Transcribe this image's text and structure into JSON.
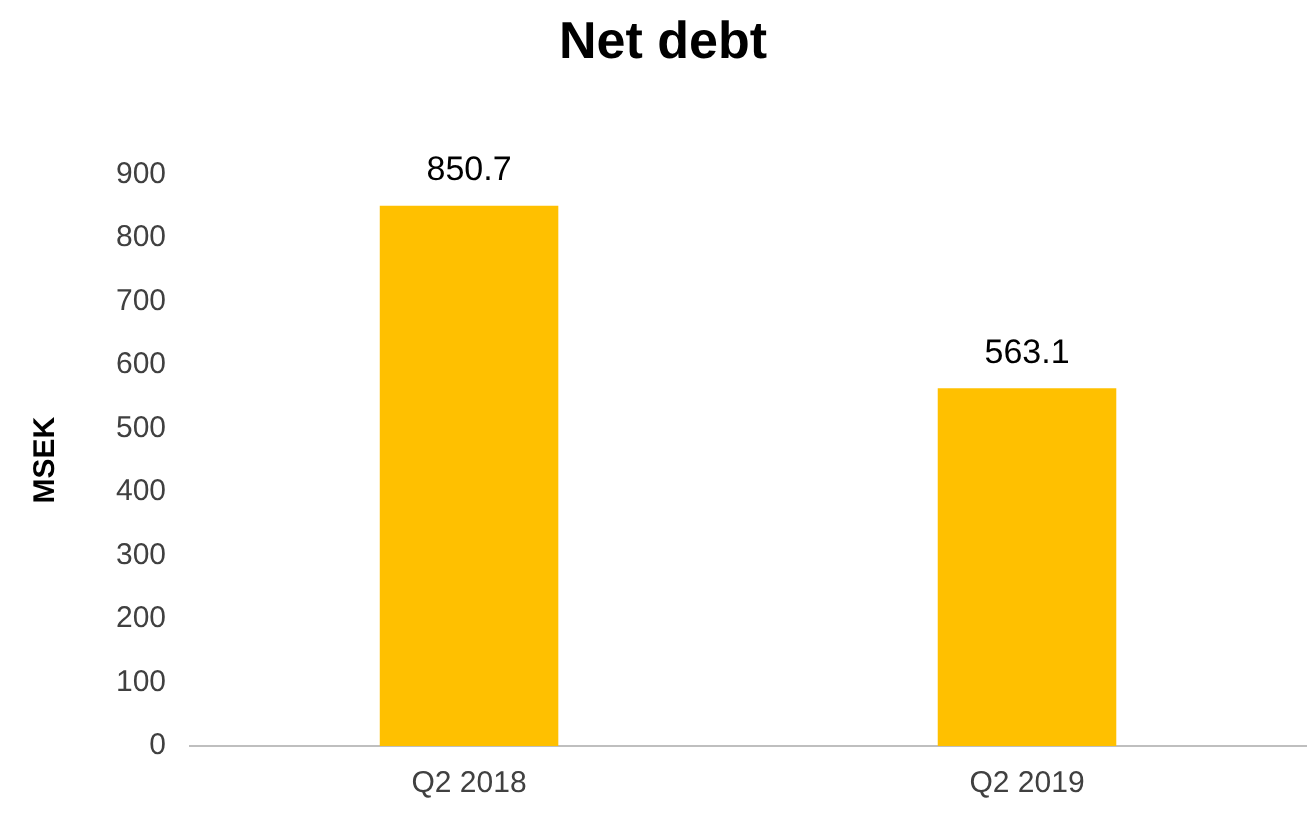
{
  "chart_data": {
    "type": "bar",
    "title": "Net debt",
    "ylabel": "MSEK",
    "categories": [
      "Q2 2018",
      "Q2 2019"
    ],
    "values": [
      850.7,
      563.1
    ],
    "color": "#ffc000",
    "ylim": [
      0,
      900
    ],
    "yticks": [
      0,
      100,
      200,
      300,
      400,
      500,
      600,
      700,
      800,
      900
    ],
    "grid": false,
    "legend": false,
    "data_labels": true
  }
}
